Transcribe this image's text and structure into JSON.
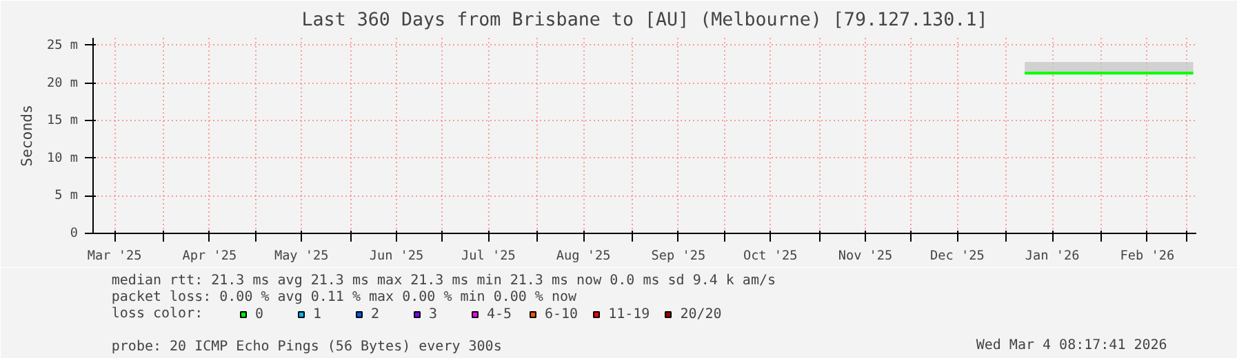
{
  "chart_data": {
    "type": "line",
    "title": "Last 360 Days from Brisbane to [AU] (Melbourne) [79.127.130.1]",
    "ylabel": "Seconds",
    "legend_title": "loss color:",
    "xlim": [
      "2025-03-09",
      "2026-03-04"
    ],
    "xticks": [
      {
        "value": "2025-03-16",
        "label": "Mar '25"
      },
      {
        "value": "2025-04-01",
        "label": null
      },
      {
        "value": "2025-04-16",
        "label": "Apr '25"
      },
      {
        "value": "2025-05-01",
        "label": null
      },
      {
        "value": "2025-05-16",
        "label": "May '25"
      },
      {
        "value": "2025-06-01",
        "label": null
      },
      {
        "value": "2025-06-16",
        "label": "Jun '25"
      },
      {
        "value": "2025-07-01",
        "label": null
      },
      {
        "value": "2025-07-16",
        "label": "Jul '25"
      },
      {
        "value": "2025-08-01",
        "label": null
      },
      {
        "value": "2025-08-16",
        "label": "Aug '25"
      },
      {
        "value": "2025-09-01",
        "label": null
      },
      {
        "value": "2025-09-16",
        "label": "Sep '25"
      },
      {
        "value": "2025-10-01",
        "label": null
      },
      {
        "value": "2025-10-16",
        "label": "Oct '25"
      },
      {
        "value": "2025-11-01",
        "label": null
      },
      {
        "value": "2025-11-16",
        "label": "Nov '25"
      },
      {
        "value": "2025-12-01",
        "label": null
      },
      {
        "value": "2025-12-16",
        "label": "Dec '25"
      },
      {
        "value": "2026-01-01",
        "label": null
      },
      {
        "value": "2026-01-16",
        "label": "Jan '26"
      },
      {
        "value": "2026-02-01",
        "label": null
      },
      {
        "value": "2026-02-16",
        "label": "Feb '26"
      },
      {
        "value": "2026-03-01",
        "label": null
      }
    ],
    "ylim": [
      0,
      26
    ],
    "yticks": [
      0,
      {
        "value": 5,
        "label": "5 m"
      },
      {
        "value": 10,
        "label": "10 m"
      },
      {
        "value": 15,
        "label": "15 m"
      },
      {
        "value": 20,
        "label": "20 m"
      },
      {
        "value": 25,
        "label": "25 m"
      }
    ],
    "grid": true,
    "legend": "bottom",
    "x": [
      "2026-01-07",
      "2026-03-03"
    ],
    "series": [
      {
        "name": "0",
        "color": "#00ff00",
        "values": [
          21.3,
          21.3
        ],
        "lower": [
          21.3,
          21.3
        ],
        "upper": [
          22.8,
          22.8
        ]
      },
      {
        "name": "1",
        "color": "#00b8ff",
        "values": [
          null,
          null
        ]
      },
      {
        "name": "2",
        "color": "#0059ff",
        "values": [
          null,
          null
        ]
      },
      {
        "name": "3",
        "color": "#7e00ff",
        "values": [
          null,
          null
        ]
      },
      {
        "name": "4-5",
        "color": "#ff00ff",
        "values": [
          null,
          null
        ]
      },
      {
        "name": "6-10",
        "color": "#ff5500",
        "values": [
          null,
          null
        ]
      },
      {
        "name": "11-19",
        "color": "#ff0000",
        "values": [
          null,
          null
        ]
      },
      {
        "name": "20/20",
        "color": "#a10000",
        "values": [
          null,
          null
        ]
      }
    ],
    "annotations": [
      "median rtt:  21.3 ms avg  21.3 ms max  21.3 ms min  21.3 ms now  0.0 ms sd  9.4 k am/s",
      "packet loss: 0.00 % avg  0.11 % max  0.00 % min  0.00 % now",
      "probe:       20 ICMP Echo Pings (56 Bytes) every 300s",
      "Wed Mar  4 08:17:41 2026"
    ]
  }
}
